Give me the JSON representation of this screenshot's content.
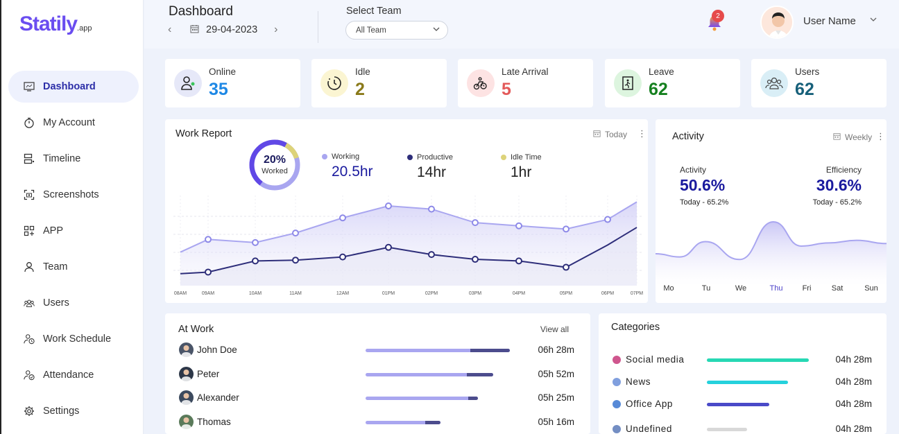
{
  "brand": {
    "logo": "Statily",
    "logo_suffix": ".app"
  },
  "sidebar": {
    "items": [
      {
        "label": "Dashboard",
        "icon": "monitor-icon"
      },
      {
        "label": "My Account",
        "icon": "clock-icon"
      },
      {
        "label": "Timeline",
        "icon": "timeline-icon"
      },
      {
        "label": "Screenshots",
        "icon": "screenshot-icon"
      },
      {
        "label": "APP",
        "icon": "apps-icon"
      },
      {
        "label": "Team",
        "icon": "person-icon"
      },
      {
        "label": "Users",
        "icon": "users-icon"
      },
      {
        "label": "Work Schedule",
        "icon": "schedule-icon"
      },
      {
        "label": "Attendance",
        "icon": "attendance-icon"
      },
      {
        "label": "Settings",
        "icon": "gear-icon"
      }
    ]
  },
  "header": {
    "title": "Dashboard",
    "date": "29-04-2023",
    "team_label": "Select Team",
    "team_value": "All Team",
    "notification_count": "2",
    "user_name": "User Name"
  },
  "stats": [
    {
      "label": "Online",
      "value": "35",
      "color": "#1e88e5"
    },
    {
      "label": "Idle",
      "value": "2",
      "color": "#8a7a1a"
    },
    {
      "label": "Late Arrival",
      "value": "5",
      "color": "#e35a5a"
    },
    {
      "label": "Leave",
      "value": "62",
      "color": "#15801f"
    },
    {
      "label": "Users",
      "value": "62",
      "color": "#17607a"
    }
  ],
  "work_report": {
    "title": "Work Report",
    "period": "Today",
    "worked_percent": "20%",
    "worked_label": "Worked",
    "worked_fraction": 0.2,
    "legend": [
      {
        "label": "Working",
        "value": "20.5hr",
        "color": "#a9a6f0"
      },
      {
        "label": "Productive",
        "value": "14hr",
        "color": "#2e2e7a"
      },
      {
        "label": "Idle Time",
        "value": "1hr",
        "color": "#ddd37a"
      }
    ],
    "chart_data": {
      "type": "line",
      "x": [
        "08AM",
        "09AM",
        "10AM",
        "11AM",
        "12AM",
        "01PM",
        "02PM",
        "03PM",
        "04PM",
        "05PM",
        "06PM",
        "07PM"
      ],
      "series": [
        {
          "name": "Working",
          "values": [
            0.42,
            0.58,
            0.54,
            0.66,
            0.85,
            1.0,
            0.96,
            0.79,
            0.75,
            0.71,
            0.83,
            1.05
          ]
        },
        {
          "name": "Productive",
          "values": [
            0.15,
            0.17,
            0.31,
            0.32,
            0.36,
            0.48,
            0.39,
            0.33,
            0.31,
            0.23,
            0.51,
            0.73
          ]
        }
      ]
    }
  },
  "activity": {
    "title": "Activity",
    "period": "Weekly",
    "activity_label": "Activity",
    "activity_value": "50.6%",
    "activity_sub": "Today - 65.2%",
    "efficiency_label": "Efficiency",
    "efficiency_value": "30.6%",
    "efficiency_sub": "Today - 65.2%",
    "chart_data": {
      "type": "area",
      "x": [
        "Mo",
        "Tu",
        "We",
        "Thu",
        "Fri",
        "Sat",
        "Sun"
      ],
      "highlight": "Thu",
      "values": [
        0.45,
        0.69,
        0.41,
        1.0,
        0.62,
        0.67,
        0.71
      ]
    }
  },
  "at_work": {
    "title": "At Work",
    "view_all": "View all",
    "rows": [
      {
        "name": "John Doe",
        "time": "06h 28m",
        "total": 0.77,
        "productive": 0.21,
        "avatar_color": "#4a5568"
      },
      {
        "name": "Peter",
        "time": "05h 52m",
        "total": 0.68,
        "productive": 0.14,
        "avatar_color": "#2d3748"
      },
      {
        "name": "Alexander",
        "time": "05h 25m",
        "total": 0.6,
        "productive": 0.05,
        "avatar_color": "#3c4a5e"
      },
      {
        "name": "Thomas",
        "time": "05h 16m",
        "total": 0.4,
        "productive": 0.08,
        "avatar_color": "#5a7a5a"
      }
    ]
  },
  "categories": {
    "title": "Categories",
    "rows": [
      {
        "name": "Social media",
        "time": "04h 28m",
        "fraction": 0.97,
        "color": "#27d8b4",
        "icon": "shield-icon"
      },
      {
        "name": "News",
        "time": "04h 28m",
        "fraction": 0.77,
        "color": "#25d1dc",
        "icon": "globe-icon"
      },
      {
        "name": "Office App",
        "time": "04h 28m",
        "fraction": 0.59,
        "color": "#4a4ac8",
        "icon": "office-icon"
      },
      {
        "name": "Undefined",
        "time": "04h 28m",
        "fraction": 0.38,
        "color": "#d8d8d8",
        "icon": "question-icon"
      }
    ]
  }
}
